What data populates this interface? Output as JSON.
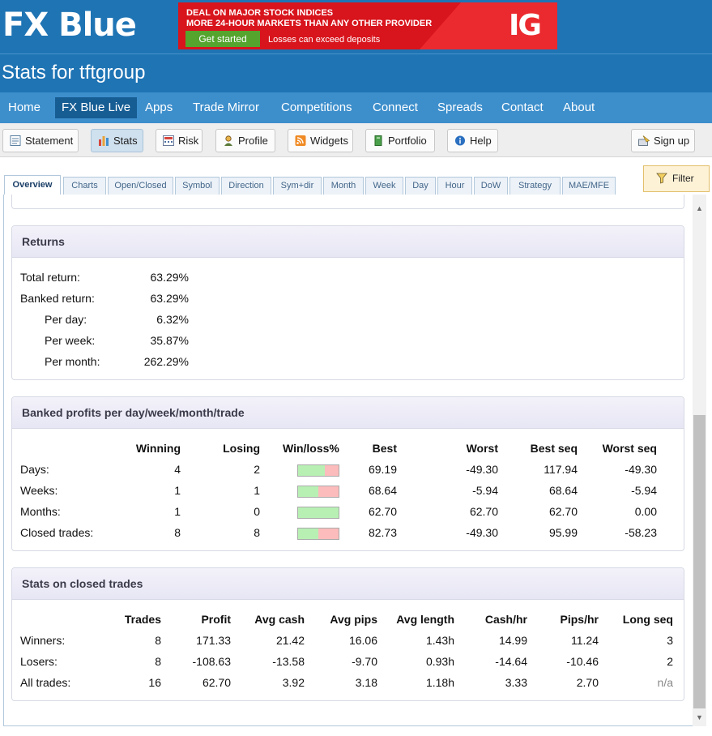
{
  "header": {
    "logo_fx": "FX",
    "logo_blue": "Blue",
    "page_title": "Stats for tftgroup"
  },
  "banner": {
    "line1": "DEAL ON MAJOR STOCK INDICES",
    "line2": "MORE 24-HOUR MARKETS THAN ANY OTHER PROVIDER",
    "cta": "Get started",
    "warning": "Losses can exceed deposits",
    "brand": "IG"
  },
  "nav": {
    "items": [
      {
        "label": "Home"
      },
      {
        "label": "FX Blue Live"
      },
      {
        "label": "Apps"
      },
      {
        "label": "Trade Mirror"
      },
      {
        "label": "Competitions"
      },
      {
        "label": "Connect"
      },
      {
        "label": "Spreads"
      },
      {
        "label": "Contact"
      },
      {
        "label": "About"
      }
    ]
  },
  "toolbar": {
    "statement": "Statement",
    "stats": "Stats",
    "risk": "Risk",
    "profile": "Profile",
    "widgets": "Widgets",
    "portfolio": "Portfolio",
    "help": "Help",
    "signup": "Sign up"
  },
  "tabs": [
    {
      "label": "Overview"
    },
    {
      "label": "Charts"
    },
    {
      "label": "Open/Closed"
    },
    {
      "label": "Symbol"
    },
    {
      "label": "Direction"
    },
    {
      "label": "Sym+dir"
    },
    {
      "label": "Month"
    },
    {
      "label": "Week"
    },
    {
      "label": "Day"
    },
    {
      "label": "Hour"
    },
    {
      "label": "DoW"
    },
    {
      "label": "Strategy"
    },
    {
      "label": "MAE/MFE"
    }
  ],
  "filter_label": "Filter",
  "returns": {
    "title": "Returns",
    "rows": [
      {
        "label": "Total return:",
        "value": "63.29%"
      },
      {
        "label": "Banked return:",
        "value": "63.29%"
      },
      {
        "label": "Per day:",
        "value": "6.32%"
      },
      {
        "label": "Per week:",
        "value": "35.87%"
      },
      {
        "label": "Per month:",
        "value": "262.29%"
      }
    ]
  },
  "banked": {
    "title": "Banked profits per day/week/month/trade",
    "headers": [
      "Winning",
      "Losing",
      "Win/loss%",
      "Best",
      "Worst",
      "Best seq",
      "Worst seq"
    ],
    "rows": [
      {
        "label": "Days:",
        "winning": "4",
        "losing": "2",
        "win_fraction": 0.667,
        "best": "69.19",
        "worst": "-49.30",
        "best_seq": "117.94",
        "worst_seq": "-49.30"
      },
      {
        "label": "Weeks:",
        "winning": "1",
        "losing": "1",
        "win_fraction": 0.5,
        "best": "68.64",
        "worst": "-5.94",
        "best_seq": "68.64",
        "worst_seq": "-5.94"
      },
      {
        "label": "Months:",
        "winning": "1",
        "losing": "0",
        "win_fraction": 1.0,
        "best": "62.70",
        "worst": "62.70",
        "best_seq": "62.70",
        "worst_seq": "0.00"
      },
      {
        "label": "Closed trades:",
        "winning": "8",
        "losing": "8",
        "win_fraction": 0.5,
        "best": "82.73",
        "worst": "-49.30",
        "best_seq": "95.99",
        "worst_seq": "-58.23"
      }
    ]
  },
  "closed": {
    "title": "Stats on closed trades",
    "headers": [
      "Trades",
      "Profit",
      "Avg cash",
      "Avg pips",
      "Avg length",
      "Cash/hr",
      "Pips/hr",
      "Long seq"
    ],
    "rows": [
      {
        "label": "Winners:",
        "values": [
          "8",
          "171.33",
          "21.42",
          "16.06",
          "1.43h",
          "14.99",
          "11.24",
          "3"
        ]
      },
      {
        "label": "Losers:",
        "values": [
          "8",
          "-108.63",
          "-13.58",
          "-9.70",
          "0.93h",
          "-14.64",
          "-10.46",
          "2"
        ]
      },
      {
        "label": "All trades:",
        "values": [
          "16",
          "62.70",
          "3.92",
          "3.18",
          "1.18h",
          "3.33",
          "2.70",
          "n/a"
        ]
      }
    ]
  },
  "colors": {
    "header_bg": "#1f74b4",
    "nav_bg": "#3d8fcc",
    "nav_active": "#165d94",
    "win_bar": "#b8f0b4",
    "loss_bar": "#fcbcbc",
    "filter_bg": "#fdf2d6"
  }
}
